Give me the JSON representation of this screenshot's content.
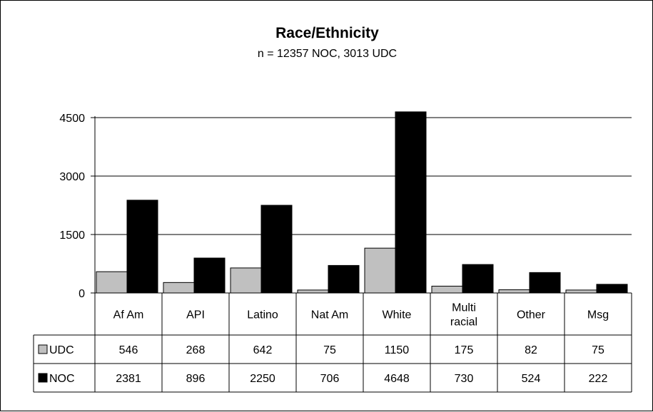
{
  "chart_data": {
    "type": "bar",
    "title": "Race/Ethnicity",
    "subtitle": "n = 12357 NOC, 3013 UDC",
    "categories": [
      "Af Am",
      "API",
      "Latino",
      "Nat Am",
      "White",
      "Multi racial",
      "Other",
      "Msg"
    ],
    "category_lines": [
      [
        "Af Am"
      ],
      [
        "API"
      ],
      [
        "Latino"
      ],
      [
        "Nat Am"
      ],
      [
        "White"
      ],
      [
        "Multi",
        "racial"
      ],
      [
        "Other"
      ],
      [
        "Msg"
      ]
    ],
    "series": [
      {
        "name": "UDC",
        "color": "#c0c0c0",
        "values": [
          546,
          268,
          642,
          75,
          1150,
          175,
          82,
          75
        ]
      },
      {
        "name": "NOC",
        "color": "#000000",
        "values": [
          2381,
          896,
          2250,
          706,
          4648,
          730,
          524,
          222
        ]
      }
    ],
    "yticks": [
      0,
      1500,
      3000,
      4500
    ],
    "ylim": [
      0,
      4500
    ],
    "grid": true,
    "legend": "data-table",
    "data_table": true
  }
}
